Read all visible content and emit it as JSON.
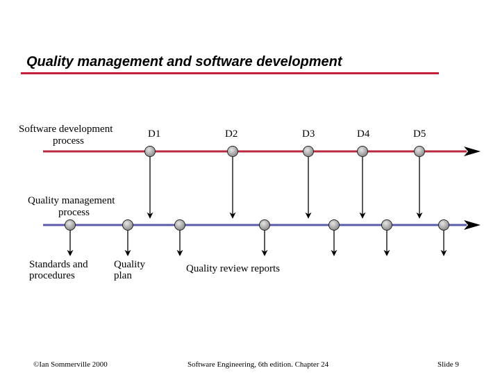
{
  "slide": {
    "title": "Quality management and software development",
    "accent_color": "#c41e3a",
    "qm_line_color": "#5a5aa8"
  },
  "diagram": {
    "dev_process_label": [
      "Software development",
      "process"
    ],
    "qm_process_label": [
      "Quality management",
      "process"
    ],
    "deliverables": [
      "D1",
      "D2",
      "D3",
      "D4",
      "D5"
    ],
    "outputs": {
      "standards": [
        "Standards and",
        "procedures"
      ],
      "plan": [
        "Quality",
        "plan"
      ],
      "reviews": "Quality review reports"
    }
  },
  "footer": {
    "copyright": "©Ian Sommerville 2000",
    "book": "Software Engineering, 6th edition. Chapter 24",
    "slide_number": "Slide 9"
  }
}
